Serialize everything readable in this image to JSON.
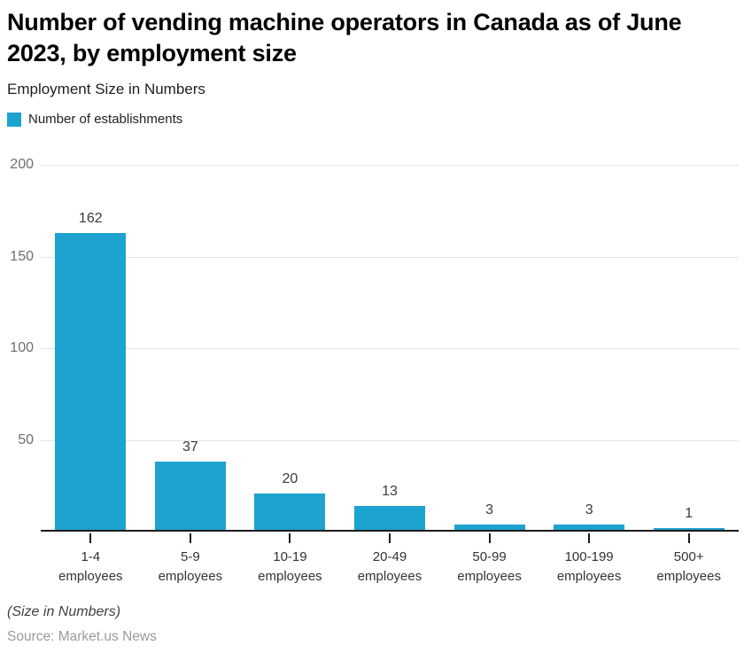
{
  "header": {
    "title": "Number of vending machine operators in Canada as of June 2023, by employment size",
    "subtitle": "Employment Size in Numbers"
  },
  "legend": {
    "label": "Number of establishments",
    "swatch_color": "#1ca3cf"
  },
  "chart_data": {
    "type": "bar",
    "title": "Number of vending machine operators in Canada as of June 2023, by employment size",
    "series_name": "Number of establishments",
    "categories": [
      "1-4",
      "5-9",
      "10-19",
      "20-49",
      "50-99",
      "100-199",
      "500+"
    ],
    "category_suffix": "employees",
    "values": [
      162,
      37,
      20,
      13,
      3,
      3,
      1
    ],
    "xlabel": "",
    "ylabel": "",
    "ylim": [
      0,
      200
    ],
    "yticks": [
      50,
      100,
      150,
      200
    ],
    "grid": "horizontal",
    "legend_position": "top-left",
    "bar_color": "#1ca3cf",
    "value_labels": true
  },
  "footer": {
    "note": "(Size in Numbers)",
    "source": "Source: Market.us News"
  }
}
